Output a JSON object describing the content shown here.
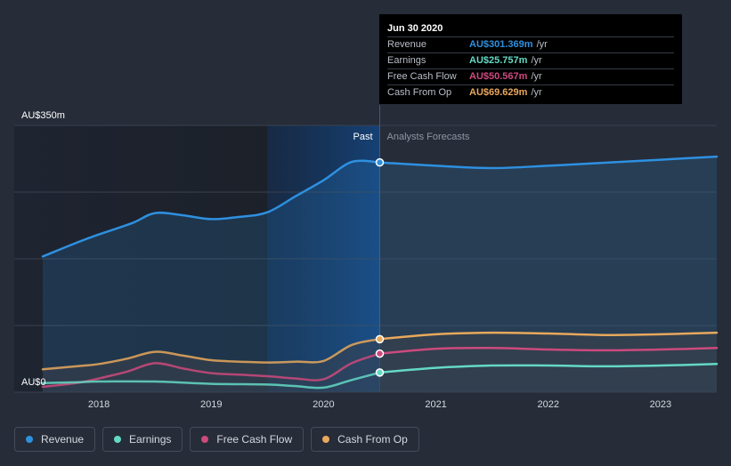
{
  "tooltip": {
    "date": "Jun 30 2020",
    "rows": [
      {
        "label": "Revenue",
        "value": "AU$301.369m",
        "unit": "/yr",
        "color": "#2e90e0"
      },
      {
        "label": "Earnings",
        "value": "AU$25.757m",
        "unit": "/yr",
        "color": "#64d9c4"
      },
      {
        "label": "Free Cash Flow",
        "value": "AU$50.567m",
        "unit": "/yr",
        "color": "#cc4a7d"
      },
      {
        "label": "Cash From Op",
        "value": "AU$69.629m",
        "unit": "/yr",
        "color": "#e8a85c"
      }
    ]
  },
  "legend": [
    {
      "label": "Revenue",
      "color": "#2e90e0"
    },
    {
      "label": "Earnings",
      "color": "#64d9c4"
    },
    {
      "label": "Free Cash Flow",
      "color": "#cc4a7d"
    },
    {
      "label": "Cash From Op",
      "color": "#e8a85c"
    }
  ],
  "chart_data": {
    "type": "line",
    "y_tick_labels": [
      "AU$350m",
      "AU$0"
    ],
    "ylim": [
      0,
      350
    ],
    "xlim": [
      2017.5,
      2023.5
    ],
    "x_ticks": [
      2018,
      2019,
      2020,
      2021,
      2022,
      2023
    ],
    "x_tick_labels": [
      "2018",
      "2019",
      "2020",
      "2021",
      "2022",
      "2023"
    ],
    "grid": true,
    "past_label": "Past",
    "forecast_label": "Analysts Forecasts",
    "divider_x": 2020.5,
    "series": [
      {
        "name": "Revenue",
        "color": "#2e90e0",
        "points": [
          [
            2017.5,
            178
          ],
          [
            2017.8,
            196
          ],
          [
            2018.0,
            207
          ],
          [
            2018.3,
            222
          ],
          [
            2018.5,
            235
          ],
          [
            2018.75,
            232
          ],
          [
            2019.0,
            227
          ],
          [
            2019.25,
            230
          ],
          [
            2019.5,
            236
          ],
          [
            2019.75,
            257
          ],
          [
            2020.0,
            278
          ],
          [
            2020.25,
            302
          ],
          [
            2020.5,
            301.4
          ],
          [
            2021.0,
            297
          ],
          [
            2021.5,
            294
          ],
          [
            2022.0,
            297
          ],
          [
            2022.5,
            301
          ],
          [
            2023.0,
            305
          ],
          [
            2023.5,
            309
          ]
        ]
      },
      {
        "name": "Earnings",
        "color": "#64d9c4",
        "points": [
          [
            2017.5,
            12
          ],
          [
            2017.8,
            13
          ],
          [
            2018.0,
            14
          ],
          [
            2018.5,
            14
          ],
          [
            2019.0,
            11
          ],
          [
            2019.5,
            10
          ],
          [
            2019.75,
            8
          ],
          [
            2020.0,
            6
          ],
          [
            2020.25,
            16
          ],
          [
            2020.5,
            25.8
          ],
          [
            2021.0,
            32
          ],
          [
            2021.5,
            35
          ],
          [
            2022.0,
            35
          ],
          [
            2022.5,
            34
          ],
          [
            2023.0,
            35
          ],
          [
            2023.5,
            37
          ]
        ]
      },
      {
        "name": "Free Cash Flow",
        "color": "#cc4a7d",
        "points": [
          [
            2017.5,
            7
          ],
          [
            2017.8,
            12
          ],
          [
            2018.0,
            18
          ],
          [
            2018.25,
            27
          ],
          [
            2018.5,
            38
          ],
          [
            2018.75,
            31
          ],
          [
            2019.0,
            25
          ],
          [
            2019.25,
            23
          ],
          [
            2019.5,
            21
          ],
          [
            2019.75,
            18
          ],
          [
            2020.0,
            17
          ],
          [
            2020.25,
            38
          ],
          [
            2020.5,
            50.6
          ],
          [
            2021.0,
            57
          ],
          [
            2021.5,
            58
          ],
          [
            2022.0,
            56
          ],
          [
            2022.5,
            55
          ],
          [
            2023.0,
            56
          ],
          [
            2023.5,
            58
          ]
        ]
      },
      {
        "name": "Cash From Op",
        "color": "#e8a85c",
        "points": [
          [
            2017.5,
            30
          ],
          [
            2017.8,
            34
          ],
          [
            2018.0,
            37
          ],
          [
            2018.25,
            44
          ],
          [
            2018.5,
            53
          ],
          [
            2018.75,
            48
          ],
          [
            2019.0,
            42
          ],
          [
            2019.25,
            40
          ],
          [
            2019.5,
            39
          ],
          [
            2019.75,
            40
          ],
          [
            2020.0,
            41
          ],
          [
            2020.25,
            62
          ],
          [
            2020.5,
            69.6
          ],
          [
            2021.0,
            76
          ],
          [
            2021.5,
            78
          ],
          [
            2022.0,
            77
          ],
          [
            2022.5,
            75
          ],
          [
            2023.0,
            76
          ],
          [
            2023.5,
            78
          ]
        ]
      }
    ]
  }
}
